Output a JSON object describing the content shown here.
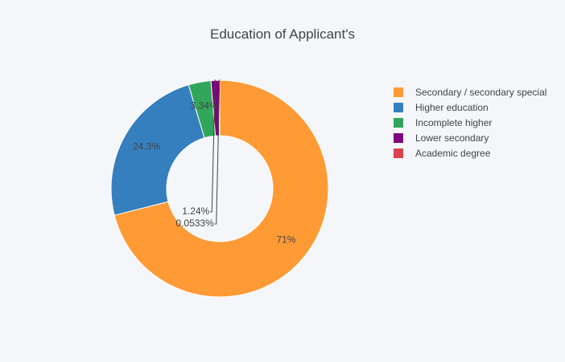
{
  "chart_data": {
    "type": "pie",
    "hole": true,
    "title": "Education of Applicant's",
    "legend_position": "top-right",
    "slices": [
      {
        "label": "Secondary / secondary special",
        "value": 71.0,
        "text": "71%",
        "color": "#ff9a35"
      },
      {
        "label": "Higher education",
        "value": 24.3,
        "text": "24.3%",
        "color": "#367fbe"
      },
      {
        "label": "Incomplete higher",
        "value": 3.34,
        "text": "3.34%",
        "color": "#31a65b"
      },
      {
        "label": "Lower secondary",
        "value": 1.24,
        "text": "1.24%",
        "color": "#800080"
      },
      {
        "label": "Academic degree",
        "value": 0.0533,
        "text": "0.0533%",
        "color": "#d9434b"
      }
    ]
  }
}
